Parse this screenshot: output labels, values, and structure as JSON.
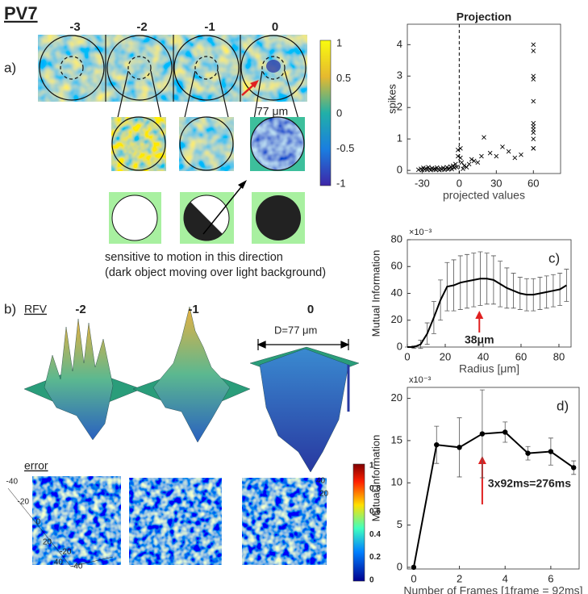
{
  "title": "PV7",
  "panel_a": {
    "label": "a)",
    "frame_labels": [
      "-3",
      "-2",
      "-1",
      "0"
    ],
    "zoom_size": "77 μm",
    "colorbar_ticks": [
      1,
      0.5,
      0,
      -0.5,
      -1
    ],
    "motion_caption": [
      "sensitive to motion in this direction",
      "(dark object moving over light background)"
    ]
  },
  "panel_b": {
    "label": "b)",
    "rfv_label": "RFV",
    "frame_labels": [
      "-2",
      "-1",
      "0"
    ],
    "diameter": "D=77 μm",
    "error_label": "error",
    "colorbar_ticks": [
      1,
      0.8,
      0.6,
      0.4,
      0.2,
      0
    ],
    "left_axis_ticks": [
      -40,
      -20,
      0,
      20,
      40
    ],
    "front_axis_ticks": [
      -40,
      -20
    ],
    "right_axis_ticks": [
      40,
      20
    ]
  },
  "chart_data": [
    {
      "type": "scatter",
      "title": "Projection",
      "x_label": "projected values",
      "y_label": "spikes",
      "color": "#000000",
      "xlim": [
        -42,
        82
      ],
      "ylim": [
        -0.1,
        4.65
      ],
      "xticks": [
        -30,
        0,
        30,
        60
      ],
      "yticks": [
        0,
        1,
        2,
        3,
        4
      ],
      "reference_line_x": 0,
      "x": [
        -33,
        -31,
        -30,
        -29,
        -28,
        -27,
        -26,
        -25,
        -24,
        -23,
        -22,
        -21,
        -20,
        -19,
        -18,
        -17,
        -16,
        -15,
        -14,
        -13,
        -12,
        -11,
        -10,
        -9,
        -8,
        -7,
        -6,
        -5,
        -4,
        -3,
        -2,
        -1,
        1,
        2,
        3,
        4,
        6,
        8,
        10,
        12,
        15,
        18,
        20,
        25,
        30,
        35,
        40,
        45,
        50,
        60,
        60,
        60,
        60,
        60,
        60,
        60,
        60,
        60,
        60,
        60,
        60,
        -1,
        1
      ],
      "values": [
        0.02,
        0.05,
        0.01,
        0.08,
        0.03,
        0.06,
        0.02,
        0.1,
        0.04,
        0.01,
        0.07,
        0.03,
        0.05,
        0.02,
        0.09,
        0.04,
        0.01,
        0.06,
        0.03,
        0.08,
        0.02,
        0.05,
        0.1,
        0.03,
        0.06,
        0.12,
        0.04,
        0.15,
        0.08,
        0.2,
        0.1,
        0.65,
        0.4,
        0.25,
        0.05,
        0.15,
        0.1,
        0.2,
        0.35,
        0.3,
        0.25,
        0.45,
        1.05,
        0.55,
        0.45,
        0.75,
        0.6,
        0.4,
        0.5,
        4.0,
        3.8,
        3.0,
        2.9,
        2.2,
        1.5,
        1.4,
        1.3,
        1.2,
        1.0,
        0.7,
        0.7,
        0.45,
        0.7
      ]
    },
    {
      "type": "line",
      "panel_label": "c)",
      "x_label": "Radius [μm]",
      "y_label": "Mutual Information",
      "y_exponent_label": "×10⁻³",
      "color": "#000000",
      "markers": false,
      "xlim": [
        0,
        86.4
      ],
      "ylim": [
        0,
        80
      ],
      "xticks": [
        0,
        20,
        40,
        60,
        80
      ],
      "yticks": [
        0,
        20,
        40,
        60,
        80
      ],
      "x": [
        0,
        3.5,
        7,
        10.5,
        14,
        17.5,
        21,
        24.5,
        28,
        31.5,
        35,
        38.5,
        42,
        45.5,
        49,
        52.5,
        56,
        59.5,
        63,
        66.5,
        70,
        73.5,
        77,
        80.5,
        84
      ],
      "values": [
        0,
        0,
        2,
        10,
        22,
        35,
        45,
        46,
        48,
        49,
        50,
        51,
        51,
        50,
        47,
        44,
        42,
        40,
        39,
        39,
        40,
        41,
        42,
        43,
        46
      ],
      "errors": [
        0,
        1,
        3,
        8,
        12,
        15,
        18,
        19,
        20,
        20,
        20,
        20,
        19,
        18,
        17,
        15,
        13,
        12,
        12,
        12,
        12,
        12,
        12,
        12,
        12
      ],
      "annotations": [
        {
          "text": "38μm",
          "x": 38
        }
      ]
    },
    {
      "type": "line",
      "panel_label": "d)",
      "x_label": "Number of Frames [1frame = 92ms]",
      "y_label": "Mutual Information",
      "y_exponent_label": "x10⁻³",
      "color": "#000000",
      "markers": true,
      "xlim": [
        -0.28,
        7.24
      ],
      "ylim": [
        -0.2,
        21.3
      ],
      "xticks": [
        0,
        2,
        4,
        6
      ],
      "yticks": [
        0,
        5,
        10,
        15,
        20
      ],
      "x": [
        0,
        1,
        2,
        3,
        4,
        5,
        6,
        7
      ],
      "values": [
        0,
        14.5,
        14.2,
        15.8,
        16.0,
        13.5,
        13.7,
        11.8
      ],
      "errors": [
        0,
        2.2,
        3.5,
        5.2,
        1.2,
        0.8,
        1.6,
        0.8
      ],
      "annotations": [
        {
          "text": "3x92ms=276ms",
          "x": 3
        }
      ]
    }
  ]
}
